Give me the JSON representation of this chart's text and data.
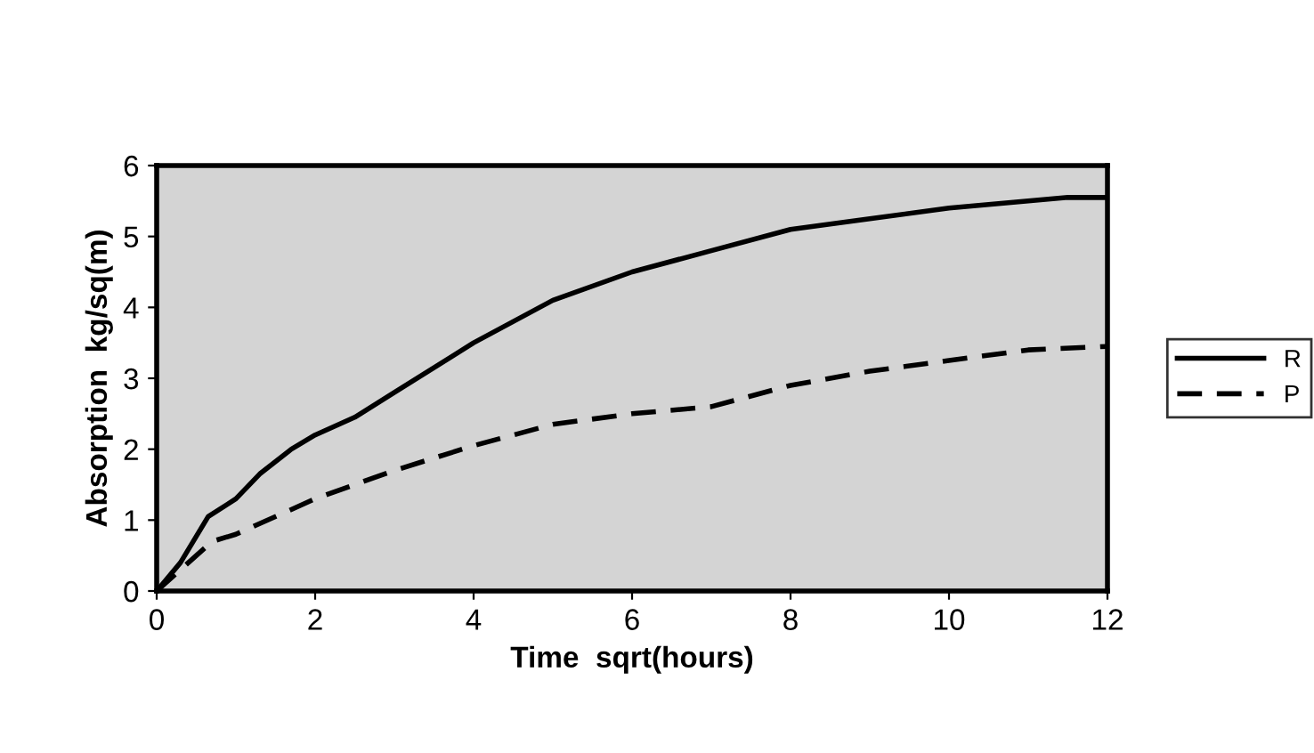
{
  "chart_data": {
    "type": "line",
    "xlabel": "Time  sqrt(hours)",
    "ylabel": "Absorption  kg/sq(m)",
    "xlim": [
      0,
      12
    ],
    "ylim": [
      0,
      6
    ],
    "xticks": [
      0,
      2,
      4,
      6,
      8,
      10,
      12
    ],
    "yticks": [
      0,
      1,
      2,
      3,
      4,
      5,
      6
    ],
    "grid": false,
    "legend": "right",
    "marker": "none",
    "series": [
      {
        "name": "R",
        "color": "#000000",
        "line_style": "solid",
        "x": [
          0,
          0.3,
          0.65,
          1,
          1.3,
          1.7,
          2,
          2.5,
          3,
          4,
          5,
          6,
          7,
          8,
          9,
          10,
          11,
          11.5,
          12
        ],
        "values": [
          0,
          0.4,
          1.05,
          1.3,
          1.65,
          2.0,
          2.2,
          2.45,
          2.8,
          3.5,
          4.1,
          4.5,
          4.8,
          5.1,
          5.25,
          5.4,
          5.5,
          5.55,
          5.55
        ]
      },
      {
        "name": "P",
        "color": "#000000",
        "line_style": "dashed",
        "x": [
          0,
          0.3,
          0.7,
          1,
          2,
          3,
          4,
          5,
          6,
          7,
          8,
          9,
          10,
          11,
          12
        ],
        "values": [
          0,
          0.3,
          0.7,
          0.8,
          1.3,
          1.7,
          2.05,
          2.35,
          2.5,
          2.6,
          2.9,
          3.1,
          3.25,
          3.4,
          3.45
        ]
      }
    ]
  }
}
